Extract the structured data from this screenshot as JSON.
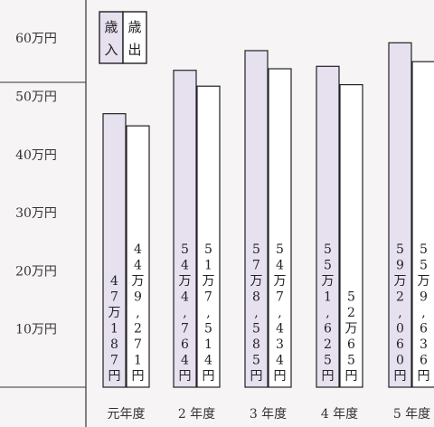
{
  "chart_data": {
    "type": "bar",
    "ylim": [
      0,
      650000
    ],
    "yticks": [
      {
        "value": 600000,
        "label": "60万円"
      },
      {
        "value": 500000,
        "label": "50万円"
      },
      {
        "value": 400000,
        "label": "40万円"
      },
      {
        "value": 300000,
        "label": "30万円"
      },
      {
        "value": 200000,
        "label": "20万円"
      },
      {
        "value": 100000,
        "label": "10万円"
      }
    ],
    "categories": [
      "元年度",
      "2 年度",
      "3 年度",
      "4 年度",
      "5 年度"
    ],
    "series": [
      {
        "name": "歳入",
        "legend_chars": [
          "歳",
          "入"
        ],
        "color": "#e6e0ef",
        "values": [
          470187,
          544764,
          578585,
          551625,
          592060
        ],
        "labels": [
          "47万187円",
          "54万4,764円",
          "57万8,585円",
          "55万1,625円",
          "59万2,060円"
        ]
      },
      {
        "name": "歳出",
        "legend_chars": [
          "歳",
          "出"
        ],
        "color": "#ffffff",
        "values": [
          449271,
          517514,
          547434,
          520065,
          559636
        ],
        "labels": [
          "44万9,271円",
          "51万7,514円",
          "54万7,434円",
          "52万65円",
          "55万9,636円"
        ]
      }
    ]
  }
}
